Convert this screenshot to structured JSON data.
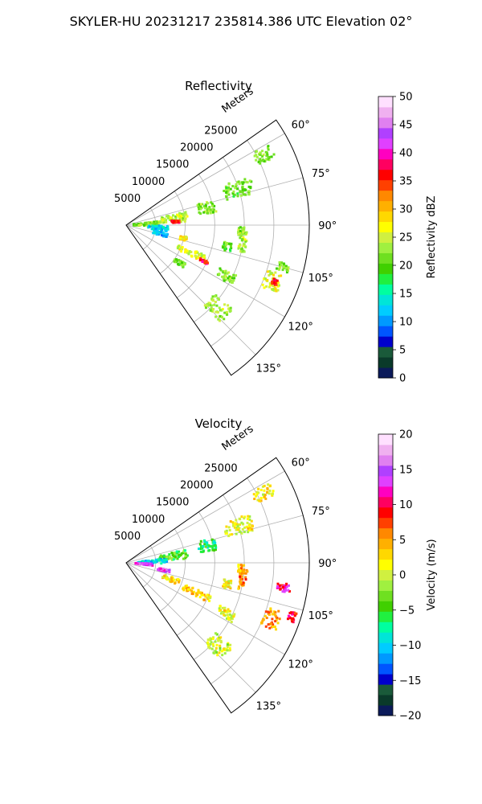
{
  "figure": {
    "suptitle": "SKYLER-HU  20231217  235814.386 UTC Elevation 02°"
  },
  "chart_data": [
    {
      "type": "heatmap",
      "title": "Reflectivity",
      "projection": "polar-sector",
      "theta_range_deg": [
        55,
        145
      ],
      "theta_ticks": [
        "60°",
        "75°",
        "90°",
        "105°",
        "120°",
        "135°"
      ],
      "theta_tick_values": [
        60,
        75,
        90,
        105,
        120,
        135
      ],
      "r_label": "Meters",
      "r_ticks": [
        "5000",
        "10000",
        "15000",
        "20000",
        "25000"
      ],
      "r_tick_values": [
        5000,
        10000,
        15000,
        20000,
        25000
      ],
      "r_max": 31000,
      "grid": true,
      "colorbar": {
        "label": "Reflectivity dBZ",
        "range": [
          0,
          50
        ],
        "ticks": [
          "0",
          "5",
          "10",
          "15",
          "20",
          "25",
          "30",
          "35",
          "40",
          "45",
          "50"
        ],
        "tick_values": [
          0,
          5,
          10,
          15,
          20,
          25,
          30,
          35,
          40,
          45,
          50
        ],
        "colors": [
          "#0b1a5a",
          "#0a3a2a",
          "#1a5a3a",
          "#0000cc",
          "#0055ff",
          "#0099ff",
          "#00ccff",
          "#00e5d8",
          "#00ffa0",
          "#20f040",
          "#40d000",
          "#6fe020",
          "#a0f040",
          "#d0f040",
          "#ffff00",
          "#ffd800",
          "#ffb000",
          "#ff8800",
          "#ff4000",
          "#ff0000",
          "#ff0060",
          "#ff00c0",
          "#e040ff",
          "#b040ff",
          "#e080f0",
          "#f0b0f0",
          "#ffe0ff"
        ]
      },
      "echoes": [
        {
          "theta": 63,
          "r": 26000,
          "dtheta": 5,
          "dr": 3500,
          "value": 22
        },
        {
          "theta": 72,
          "r": 20000,
          "dtheta": 8,
          "dr": 5000,
          "value": 21
        },
        {
          "theta": 78,
          "r": 14000,
          "dtheta": 8,
          "dr": 3000,
          "value": 22
        },
        {
          "theta": 82,
          "r": 8000,
          "dtheta": 9,
          "dr": 5000,
          "value": 24
        },
        {
          "theta": 86,
          "r": 8500,
          "dtheta": 3,
          "dr": 1500,
          "value": 36
        },
        {
          "theta": 88,
          "r": 3500,
          "dtheta": 10,
          "dr": 4500,
          "value": 22
        },
        {
          "theta": 95,
          "r": 5500,
          "dtheta": 8,
          "dr": 3500,
          "value": 13
        },
        {
          "theta": 104,
          "r": 6000,
          "dtheta": 6,
          "dr": 2500,
          "value": 12
        },
        {
          "theta": 103,
          "r": 10000,
          "dtheta": 4,
          "dr": 1200,
          "value": 28
        },
        {
          "theta": 113,
          "r": 12000,
          "dtheta": 5,
          "dr": 5000,
          "value": 25
        },
        {
          "theta": 115,
          "r": 14500,
          "dtheta": 2,
          "dr": 1500,
          "value": 36
        },
        {
          "theta": 102,
          "r": 17500,
          "dtheta": 5,
          "dr": 1500,
          "value": 21
        },
        {
          "theta": 98,
          "r": 20000,
          "dtheta": 10,
          "dr": 1200,
          "value": 24
        },
        {
          "theta": 93,
          "r": 19500,
          "dtheta": 4,
          "dr": 1000,
          "value": 22
        },
        {
          "theta": 105,
          "r": 27500,
          "dtheta": 3,
          "dr": 2000,
          "value": 22
        },
        {
          "theta": 111,
          "r": 26500,
          "dtheta": 7,
          "dr": 3000,
          "value": 26
        },
        {
          "theta": 111,
          "r": 27000,
          "dtheta": 2,
          "dr": 1000,
          "value": 36
        },
        {
          "theta": 117,
          "r": 19000,
          "dtheta": 5,
          "dr": 3000,
          "value": 22
        },
        {
          "theta": 132,
          "r": 21000,
          "dtheta": 8,
          "dr": 4000,
          "value": 23
        },
        {
          "theta": 125,
          "r": 11000,
          "dtheta": 4,
          "dr": 2000,
          "value": 21
        }
      ]
    },
    {
      "type": "heatmap",
      "title": "Velocity",
      "projection": "polar-sector",
      "theta_range_deg": [
        55,
        145
      ],
      "theta_ticks": [
        "60°",
        "75°",
        "90°",
        "105°",
        "120°",
        "135°"
      ],
      "theta_tick_values": [
        60,
        75,
        90,
        105,
        120,
        135
      ],
      "r_label": "Meters",
      "r_ticks": [
        "5000",
        "10000",
        "15000",
        "20000",
        "25000"
      ],
      "r_tick_values": [
        5000,
        10000,
        15000,
        20000,
        25000
      ],
      "r_max": 31000,
      "grid": true,
      "colorbar": {
        "label": "Velocity (m/s)",
        "range": [
          -20,
          20
        ],
        "ticks": [
          "−20",
          "−15",
          "−10",
          "−5",
          "0",
          "5",
          "10",
          "15",
          "20"
        ],
        "tick_values": [
          -20,
          -15,
          -10,
          -5,
          0,
          5,
          10,
          15,
          20
        ],
        "colors": [
          "#0b1a5a",
          "#0a3a2a",
          "#1a5a3a",
          "#0000cc",
          "#0055ff",
          "#0099ff",
          "#00ccff",
          "#00e5d8",
          "#00ffa0",
          "#20f040",
          "#40d000",
          "#6fe020",
          "#a0f040",
          "#d0f040",
          "#ffff00",
          "#ffd800",
          "#ffb000",
          "#ff8800",
          "#ff4000",
          "#ff0000",
          "#ff0060",
          "#ff00c0",
          "#e040ff",
          "#b040ff",
          "#e080f0",
          "#f0b0f0",
          "#ffe0ff"
        ]
      },
      "echoes": [
        {
          "theta": 63,
          "r": 26000,
          "dtheta": 5,
          "dr": 3500,
          "value": 2
        },
        {
          "theta": 72,
          "r": 20000,
          "dtheta": 8,
          "dr": 5000,
          "value": 1
        },
        {
          "theta": 78,
          "r": 14000,
          "dtheta": 8,
          "dr": 3000,
          "value": -6
        },
        {
          "theta": 82,
          "r": 8000,
          "dtheta": 9,
          "dr": 5000,
          "value": -4
        },
        {
          "theta": 88,
          "r": 4500,
          "dtheta": 8,
          "dr": 5000,
          "value": -10
        },
        {
          "theta": 94,
          "r": 3000,
          "dtheta": 5,
          "dr": 3000,
          "value": 14
        },
        {
          "theta": 101,
          "r": 6500,
          "dtheta": 4,
          "dr": 2000,
          "value": 14
        },
        {
          "theta": 110,
          "r": 8000,
          "dtheta": 6,
          "dr": 3000,
          "value": 2
        },
        {
          "theta": 113,
          "r": 13000,
          "dtheta": 5,
          "dr": 5000,
          "value": 3
        },
        {
          "theta": 102,
          "r": 17500,
          "dtheta": 5,
          "dr": 1500,
          "value": 2
        },
        {
          "theta": 98,
          "r": 20000,
          "dtheta": 10,
          "dr": 1200,
          "value": 6
        },
        {
          "theta": 93,
          "r": 19500,
          "dtheta": 4,
          "dr": 1000,
          "value": 4
        },
        {
          "theta": 99,
          "r": 27000,
          "dtheta": 3,
          "dr": 2500,
          "value": 11
        },
        {
          "theta": 111,
          "r": 26500,
          "dtheta": 7,
          "dr": 3000,
          "value": 5
        },
        {
          "theta": 108,
          "r": 29500,
          "dtheta": 3,
          "dr": 1200,
          "value": 9
        },
        {
          "theta": 117,
          "r": 19000,
          "dtheta": 5,
          "dr": 3000,
          "value": 1
        },
        {
          "theta": 132,
          "r": 21000,
          "dtheta": 8,
          "dr": 4000,
          "value": 0
        }
      ]
    }
  ]
}
